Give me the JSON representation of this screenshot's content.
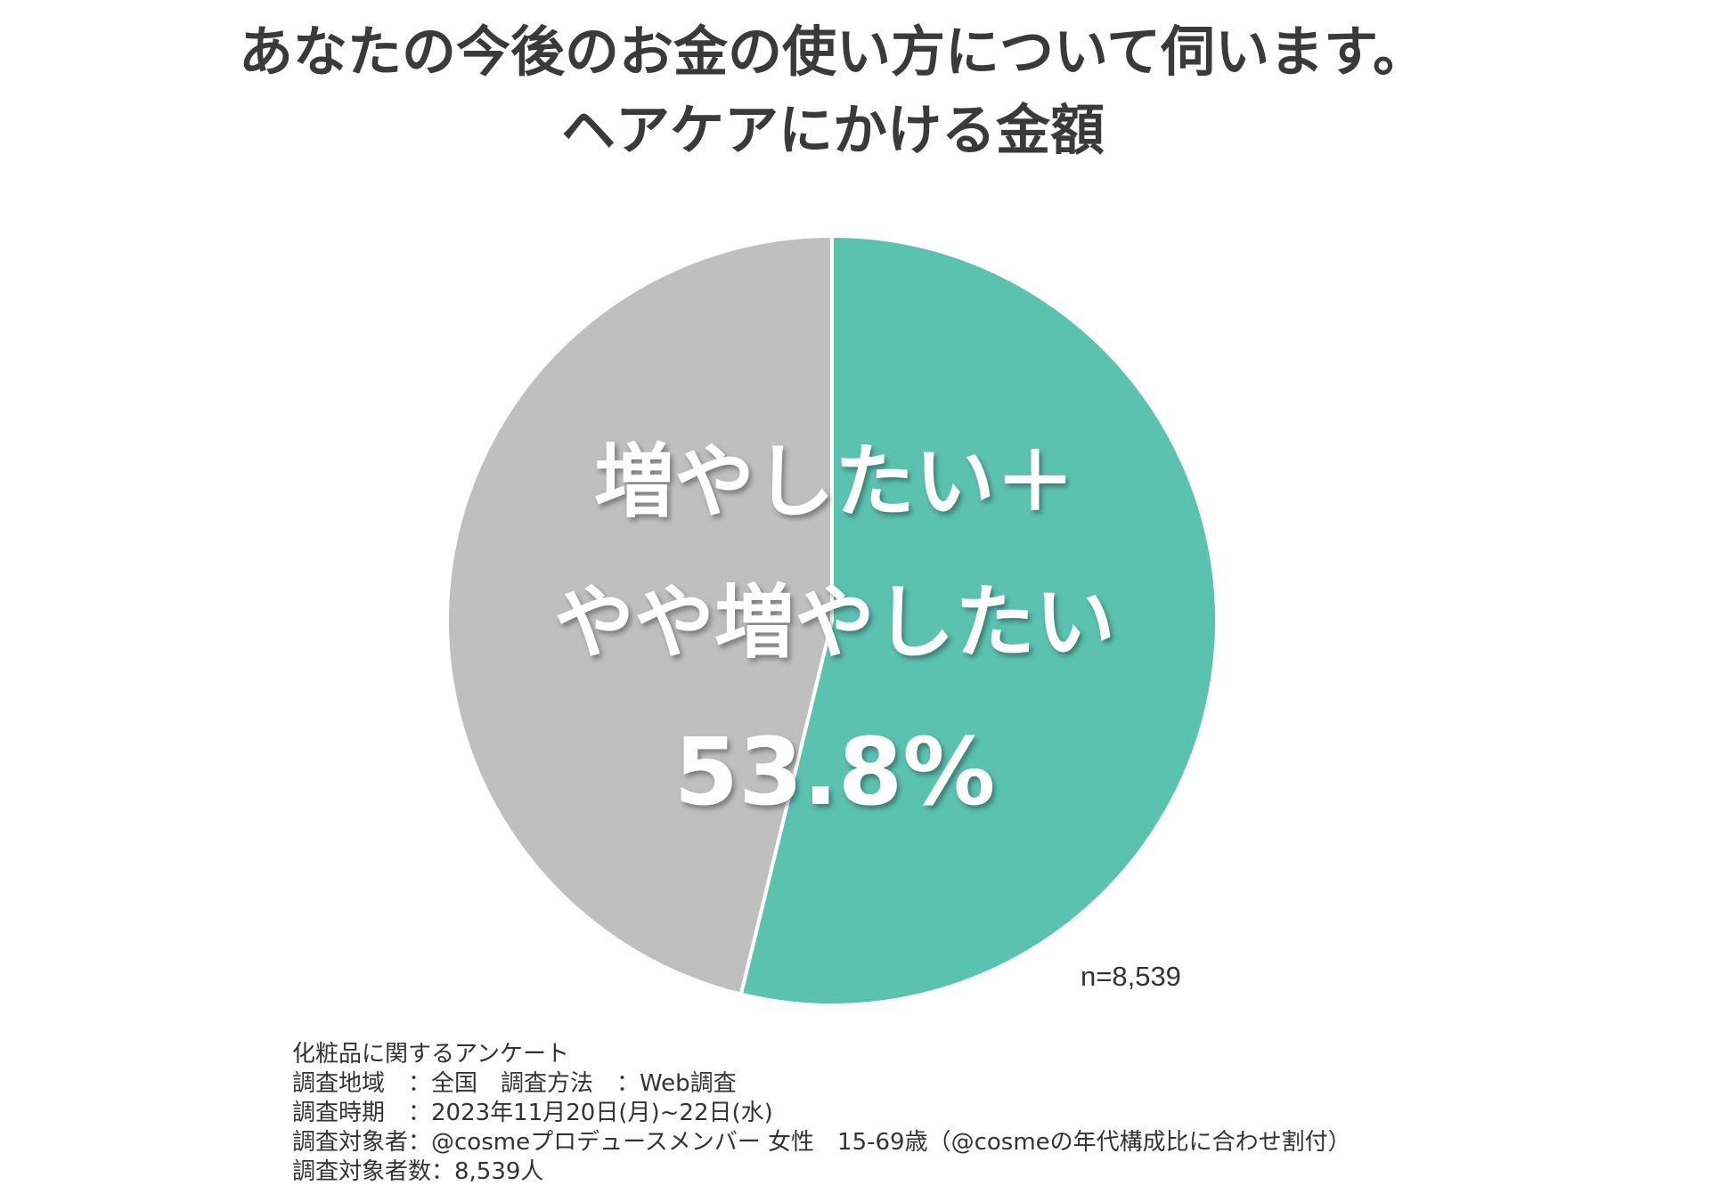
{
  "title": {
    "line1": "あなたの今後のお金の使い方について伺います。",
    "line2": "ヘアケアにかける金額"
  },
  "chart_data": {
    "type": "pie",
    "title": "あなたの今後のお金の使い方について伺います。 ヘアケアにかける金額",
    "slices": [
      {
        "label": "増やしたい＋やや増やしたい",
        "value": 53.8,
        "color": "#5cc2b0"
      },
      {
        "label": "",
        "value": 46.2,
        "color": "#bfbfbf"
      }
    ],
    "start_angle_deg": 0,
    "direction": "clockwise",
    "annotation": {
      "line1": "増やしたい＋",
      "line2": "やや増やしたい",
      "value": "53.8%"
    },
    "sample_size": "n=8,539",
    "legend": "none"
  },
  "colors": {
    "highlight": "#5cc2b0",
    "rest": "#bfbfbf",
    "title": "#3a3a3a"
  },
  "footnote": {
    "survey_name": "化粧品に関するアンケート",
    "region": "調査地域　：全国　調査方法　：Web調査",
    "period": "調査時期　：2023年11月20日(月)~22日(水)",
    "target": "調査対象者：@cosmeプロデュースメンバー 女性　15-69歳（@cosmeの年代構成比に合わせ割付）",
    "count": "調査対象者数：8,539人"
  }
}
